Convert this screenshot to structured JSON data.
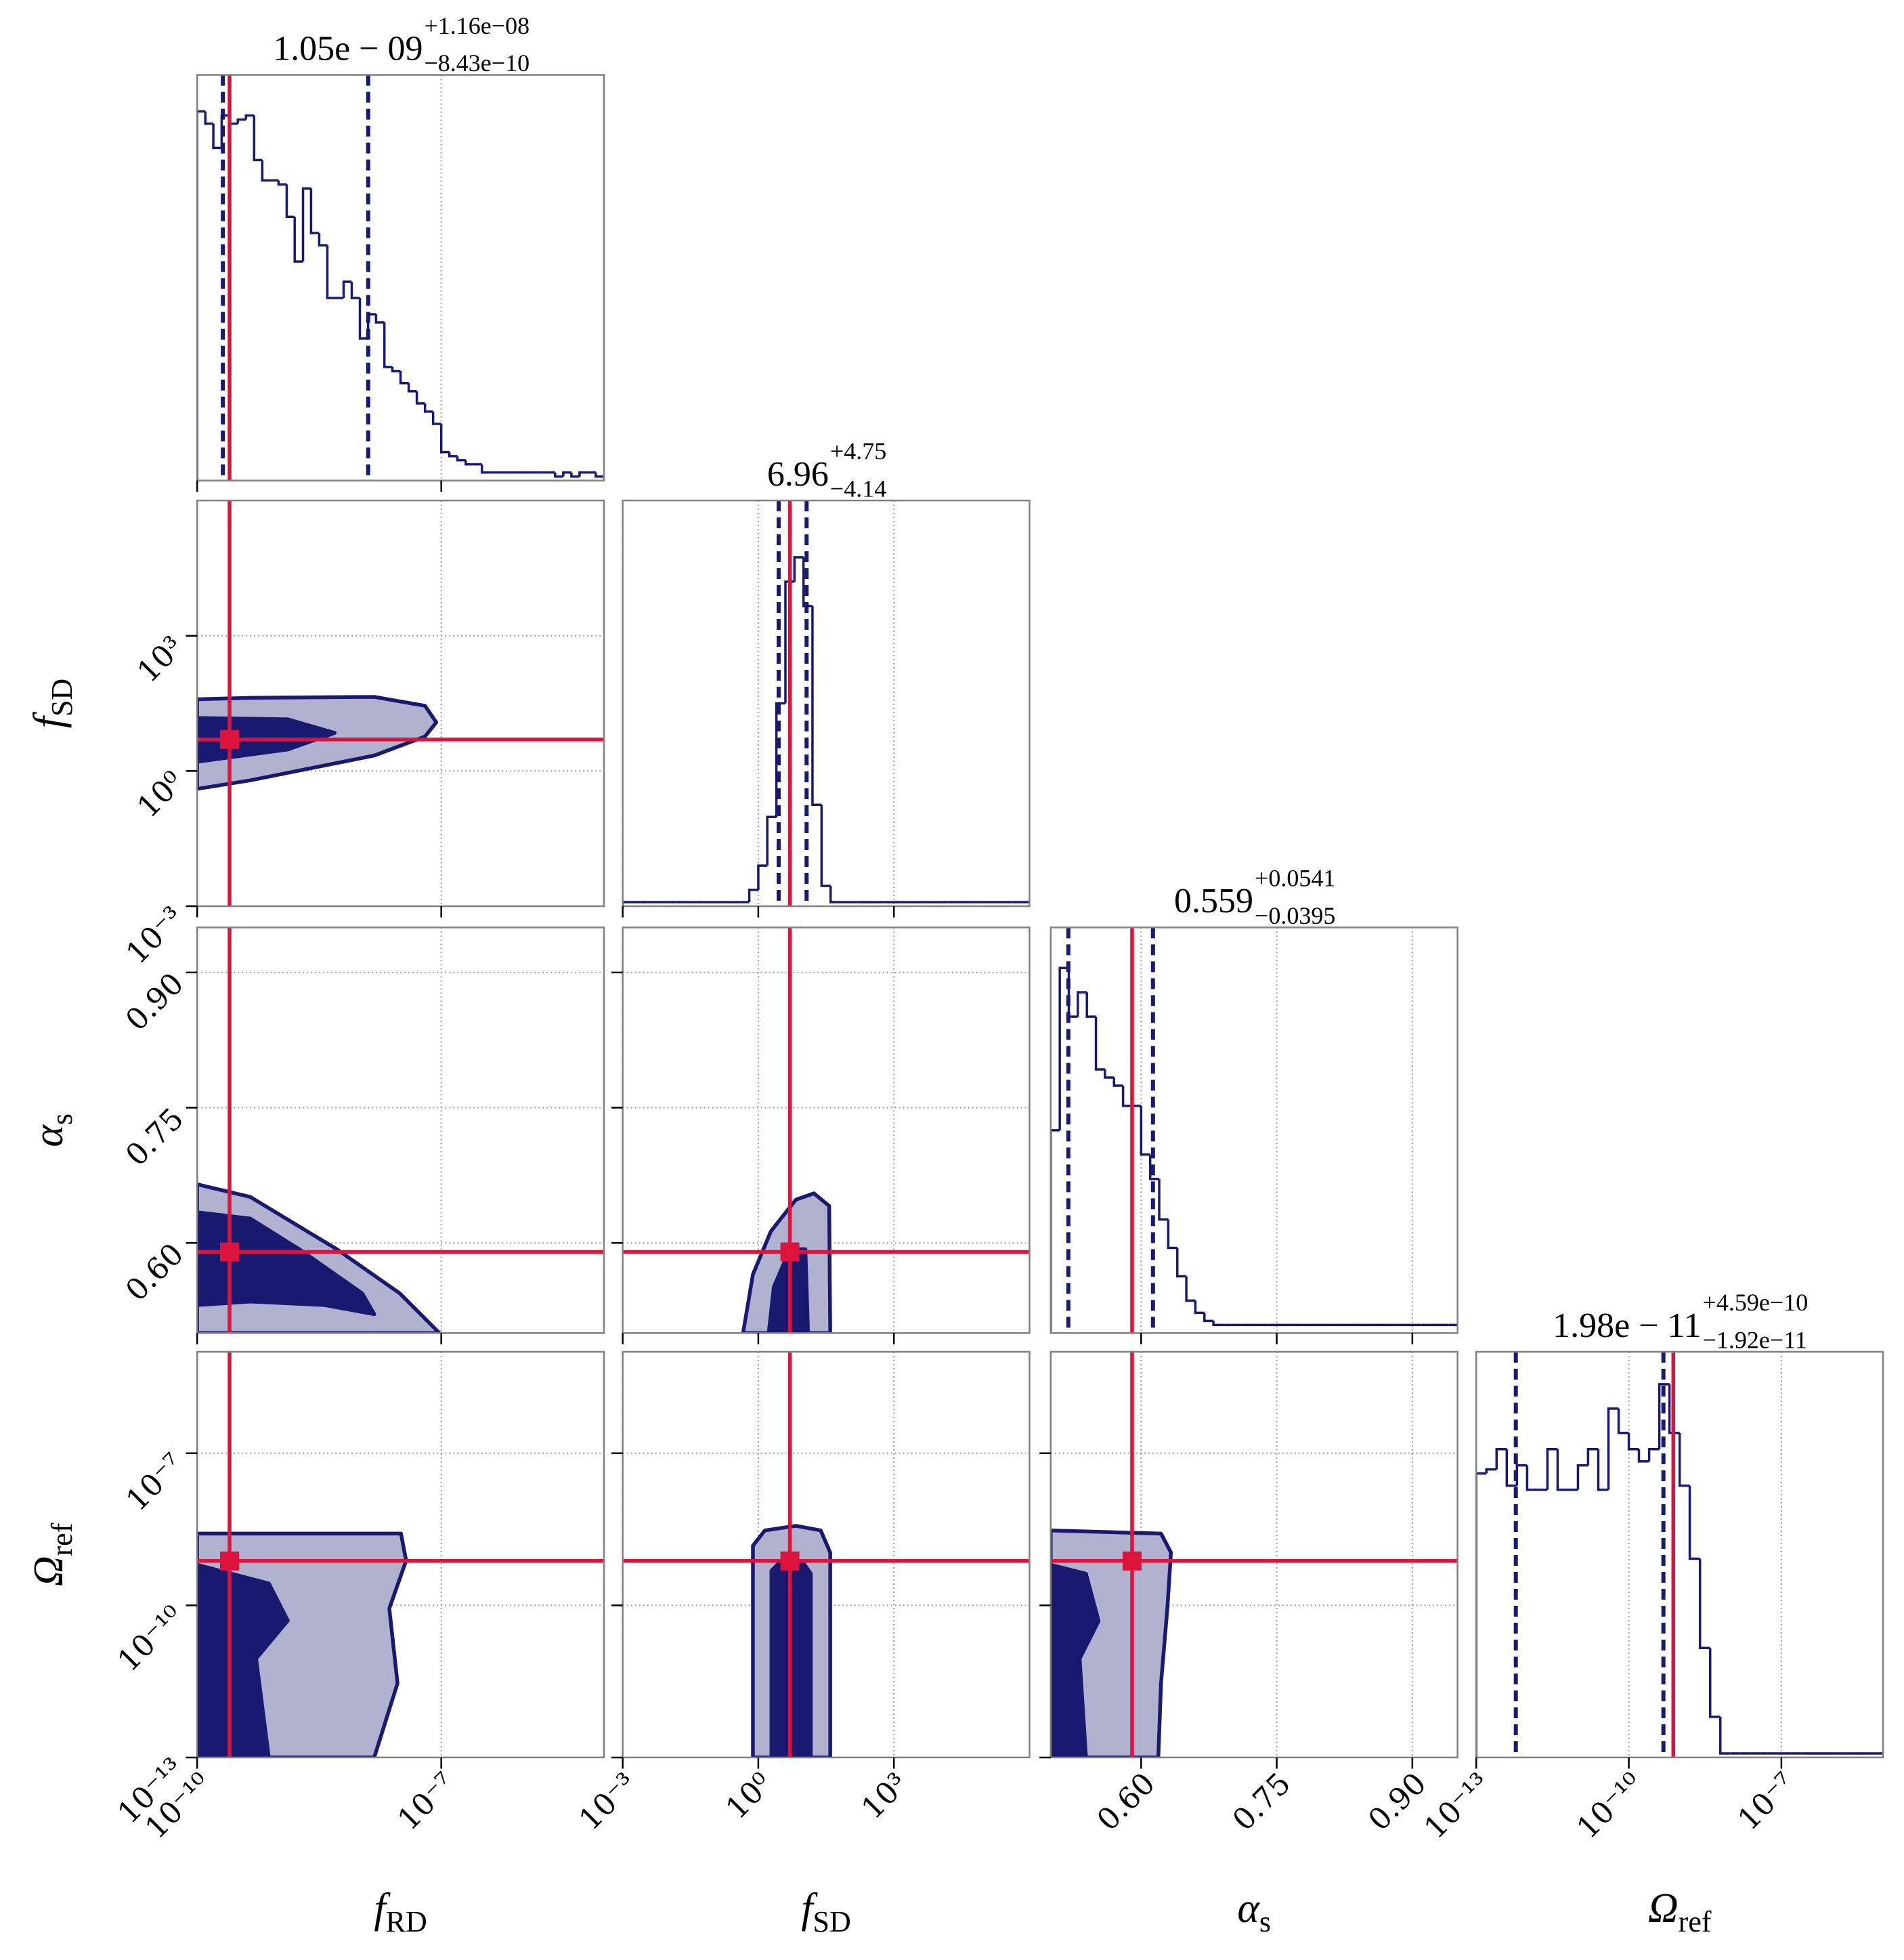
{
  "chart_data": {
    "type": "corner",
    "grid": true,
    "colors": {
      "line": "#191970",
      "fill": "#b0b2d0",
      "truth": "#dc143c",
      "spine": "#808080",
      "grid": "#9a9a9a"
    },
    "parameters": [
      {
        "symbol": "f",
        "subscript": "RD",
        "scale": "log",
        "lim": [
          1e-10,
          1e-05
        ],
        "ticks": [
          {
            "value": 1e-10,
            "label": "10⁻¹⁰"
          },
          {
            "value": 1e-07,
            "label": "10⁻⁷"
          }
        ]
      },
      {
        "symbol": "f",
        "subscript": "SD",
        "scale": "log",
        "lim": [
          0.001,
          1000000
        ],
        "ticks": [
          {
            "value": 0.001,
            "label": "10⁻³"
          },
          {
            "value": 1,
            "label": "10⁰"
          },
          {
            "value": 1000,
            "label": "10³"
          }
        ]
      },
      {
        "symbol": "α",
        "subscript": "s",
        "scale": "linear",
        "lim": [
          0.5,
          0.95
        ],
        "ticks": [
          {
            "value": 0.6,
            "label": "0.60"
          },
          0.75,
          {
            "value": 0.9,
            "label": "0.90"
          }
        ]
      },
      {
        "symbol": "Ω",
        "subscript": "ref",
        "scale": "log",
        "lim": [
          1e-13,
          1e-05
        ],
        "ticks": [
          {
            "value": 1e-13,
            "label": "10⁻¹³"
          },
          {
            "value": 1e-10,
            "label": "10⁻¹⁰"
          },
          {
            "value": 1e-07,
            "label": "10⁻⁷"
          }
        ]
      }
    ],
    "truths": [
      2.5e-10,
      5,
      0.59,
      7.5e-10
    ],
    "histograms": [
      {
        "title": "1.05e − 09",
        "title_upper": "+1.16e−08",
        "title_lower": "−8.43e−10",
        "quantiles": [
          2.07e-10,
          1.265e-08
        ],
        "ylim": [
          0,
          1
        ],
        "bins": [
          1e-10,
          1.26e-10,
          1.58e-10,
          2e-10,
          2.51e-10,
          3.16e-10,
          3.98e-10,
          5.01e-10,
          6.31e-10,
          7.94e-10,
          1e-09,
          1.26e-09,
          1.58e-09,
          2e-09,
          2.51e-09,
          3.16e-09,
          3.98e-09,
          5.01e-09,
          6.31e-09,
          7.94e-09,
          1e-08,
          1.26e-08,
          1.58e-08,
          2e-08,
          2.51e-08,
          3.16e-08,
          3.98e-08,
          5.01e-08,
          6.31e-08,
          7.94e-08,
          1e-07,
          1.26e-07,
          1.58e-07,
          2e-07,
          2.51e-07,
          3.16e-07,
          3.98e-07,
          5.01e-07,
          6.31e-07,
          7.94e-07,
          1e-06,
          1.26e-06,
          1.58e-06,
          2e-06,
          2.51e-06,
          3.16e-06,
          3.98e-06,
          5.01e-06,
          6.31e-06,
          7.94e-06,
          1e-05
        ],
        "values": [
          0.91,
          0.88,
          0.82,
          0.9,
          0.88,
          0.89,
          0.9,
          0.79,
          0.74,
          0.74,
          0.73,
          0.65,
          0.54,
          0.72,
          0.61,
          0.58,
          0.45,
          0.45,
          0.49,
          0.45,
          0.35,
          0.41,
          0.39,
          0.28,
          0.27,
          0.24,
          0.22,
          0.19,
          0.17,
          0.14,
          0.07,
          0.06,
          0.05,
          0.04,
          0.04,
          0.02,
          0.02,
          0.02,
          0.02,
          0.02,
          0.02,
          0.02,
          0.02,
          0.02,
          0.01,
          0.02,
          0.01,
          0.02,
          0.02,
          0.01
        ]
      },
      {
        "title": "6.96",
        "title_upper": "+4.75",
        "title_lower": "−4.14",
        "quantiles": [
          2.82,
          11.71
        ],
        "ylim": [
          0,
          1
        ],
        "bins": [
          0.001,
          0.00158,
          0.00251,
          0.00398,
          0.00631,
          0.01,
          0.0158,
          0.0251,
          0.0398,
          0.0631,
          0.1,
          0.158,
          0.251,
          0.398,
          0.631,
          1,
          1.58,
          2.51,
          3.98,
          6.31,
          10,
          15.8,
          25.1,
          39.8,
          63.1,
          100,
          158,
          251,
          398,
          631,
          1000,
          1580,
          2510,
          3980,
          6310,
          10000,
          15800,
          25100,
          39800,
          63100,
          100000,
          158000,
          251000,
          398000,
          631000,
          1000000
        ],
        "values": [
          0.01,
          0.01,
          0.01,
          0.01,
          0.01,
          0.01,
          0.01,
          0.01,
          0.01,
          0.01,
          0.01,
          0.01,
          0.01,
          0.01,
          0.04,
          0.1,
          0.22,
          0.5,
          0.8,
          0.86,
          0.74,
          0.25,
          0.05,
          0.01,
          0.01,
          0.01,
          0.01,
          0.01,
          0.01,
          0.01,
          0.01,
          0.01,
          0.01,
          0.01,
          0.01,
          0.01,
          0.01,
          0.01,
          0.01,
          0.01,
          0.01,
          0.01,
          0.01,
          0.01,
          0.01
        ]
      },
      {
        "title": "0.559",
        "title_upper": "+0.0541",
        "title_lower": "−0.0395",
        "quantiles": [
          0.5195,
          0.6131
        ],
        "ylim": [
          0,
          1
        ],
        "bins": [
          0.5,
          0.51,
          0.52,
          0.53,
          0.54,
          0.55,
          0.56,
          0.57,
          0.58,
          0.59,
          0.6,
          0.61,
          0.62,
          0.63,
          0.64,
          0.65,
          0.66,
          0.67,
          0.68,
          0.69,
          0.7,
          0.71,
          0.72,
          0.73,
          0.74,
          0.75,
          0.76,
          0.77,
          0.78,
          0.79,
          0.8,
          0.81,
          0.82,
          0.83,
          0.84,
          0.85,
          0.86,
          0.87,
          0.88,
          0.89,
          0.9,
          0.91,
          0.92,
          0.93,
          0.94,
          0.95
        ],
        "values": [
          0.5,
          0.9,
          0.78,
          0.84,
          0.78,
          0.65,
          0.63,
          0.61,
          0.56,
          0.56,
          0.44,
          0.38,
          0.28,
          0.21,
          0.14,
          0.08,
          0.05,
          0.03,
          0.02,
          0.02,
          0.02,
          0.02,
          0.02,
          0.02,
          0.02,
          0.02,
          0.02,
          0.02,
          0.02,
          0.02,
          0.02,
          0.02,
          0.02,
          0.02,
          0.02,
          0.02,
          0.02,
          0.02,
          0.02,
          0.02,
          0.02,
          0.02,
          0.02,
          0.02,
          0.02
        ]
      },
      {
        "title": "1.98e − 11",
        "title_upper": "+4.59e−10",
        "title_lower": "−1.92e−11",
        "quantiles": [
          6e-13,
          4.79e-10
        ],
        "ylim": [
          0,
          1
        ],
        "bins": [
          1e-13,
          1.58e-13,
          2.51e-13,
          3.98e-13,
          6.31e-13,
          1e-12,
          1.58e-12,
          2.51e-12,
          3.98e-12,
          6.31e-12,
          1e-11,
          1.58e-11,
          2.51e-11,
          3.98e-11,
          6.31e-11,
          1e-10,
          1.58e-10,
          2.51e-10,
          3.98e-10,
          6.31e-10,
          1e-09,
          1.58e-09,
          2.51e-09,
          3.98e-09,
          6.31e-09,
          1e-08,
          1.58e-08,
          2.51e-08,
          3.98e-08,
          6.31e-08,
          1e-07,
          1.58e-07,
          2.51e-07,
          3.98e-07,
          6.31e-07,
          1e-06,
          1.58e-06,
          2.51e-06,
          3.98e-06,
          6.31e-06,
          1e-05
        ],
        "values": [
          0.7,
          0.71,
          0.76,
          0.67,
          0.72,
          0.66,
          0.66,
          0.76,
          0.66,
          0.66,
          0.72,
          0.76,
          0.66,
          0.86,
          0.8,
          0.76,
          0.73,
          0.76,
          0.92,
          0.8,
          0.67,
          0.49,
          0.27,
          0.1,
          0.01,
          0.01,
          0.01,
          0.01,
          0.01,
          0.01,
          0.01,
          0.01,
          0.01,
          0.01,
          0.01,
          0.01,
          0.01,
          0.01,
          0.01,
          0.01
        ]
      }
    ],
    "contours": [
      [
        {
          "x": [
            1e-10,
            4.5e-10,
            1.5e-08,
            6.3e-08,
            8.7e-08,
            6.3e-08,
            1.5e-08,
            4.5e-10,
            1e-10
          ],
          "y": [
            39,
            42,
            44,
            28,
            12,
            5.8,
            2.2,
            0.62,
            0.4
          ]
        },
        {
          "x": [
            1e-10,
            1.3e-09,
            4.9e-09,
            1.3e-09,
            1e-10
          ],
          "y": [
            15,
            14,
            7,
            3,
            1.6
          ]
        }
      ],
      [
        {
          "x": [
            1e-10,
            4.5e-10,
            5.2e-09,
            3.1e-08,
            9.5e-08,
            1e-10
          ],
          "y": [
            0.665,
            0.651,
            0.593,
            0.544,
            0.5,
            0.5
          ]
        },
        {
          "x": [
            1e-10,
            4.5e-10,
            1.8e-09,
            1.07e-08,
            1.5e-08,
            3.7e-09,
            4.5e-10,
            1e-10
          ],
          "y": [
            0.634,
            0.627,
            0.593,
            0.544,
            0.521,
            0.531,
            0.535,
            0.531
          ]
        }
      ],
      [
        {
          "x": [
            0.46,
            0.76,
            1.9,
            6.8,
            17,
            37,
            39
          ],
          "y": [
            0.5,
            0.565,
            0.613,
            0.648,
            0.655,
            0.641,
            0.5
          ]
        },
        {
          "x": [
            1.7,
            2.2,
            5,
            11,
            12.6
          ],
          "y": [
            0.5,
            0.551,
            0.593,
            0.593,
            0.5
          ]
        }
      ],
      [
        {
          "x": [
            1e-10,
            3.2e-08,
            3.7e-08,
            2.3e-08,
            2.9e-08,
            1.5e-08,
            1e-10
          ],
          "y": [
            2.6e-09,
            2.6e-09,
            7.6e-10,
            8.7e-11,
            2.9e-12,
            1e-13,
            1e-13
          ]
        },
        {
          "x": [
            1e-10,
            7.6e-10,
            1.3e-09,
            5.3e-10,
            7.6e-10,
            1e-10
          ],
          "y": [
            6.3e-10,
            2.7e-10,
            5e-11,
            8.9e-12,
            1e-13,
            1e-13
          ]
        }
      ],
      [
        {
          "x": [
            0.76,
            0.76,
            1.4,
            6.8,
            24,
            39,
            39
          ],
          "y": [
            1e-13,
            1.5e-09,
            3e-09,
            3.7e-09,
            3e-09,
            1.1e-09,
            1e-13
          ]
        },
        {
          "x": [
            1.95,
            1.95,
            3.2,
            9.3,
            14.5,
            14.5
          ],
          "y": [
            1e-13,
            4.8e-10,
            7.5e-10,
            7.5e-10,
            4.2e-10,
            1e-13
          ]
        }
      ],
      [
        {
          "x": [
            0.5,
            0.622,
            0.633,
            0.629,
            0.622,
            0.619,
            0.5
          ],
          "y": [
            3e-09,
            2.6e-09,
            1.1e-09,
            8.7e-11,
            2.9e-12,
            1e-13,
            1e-13
          ]
        },
        {
          "x": [
            0.5,
            0.539,
            0.553,
            0.532,
            0.539,
            0.5
          ],
          "y": [
            6.3e-10,
            4.2e-10,
            4.9e-11,
            8.9e-12,
            1e-13,
            1e-13
          ]
        }
      ]
    ]
  }
}
